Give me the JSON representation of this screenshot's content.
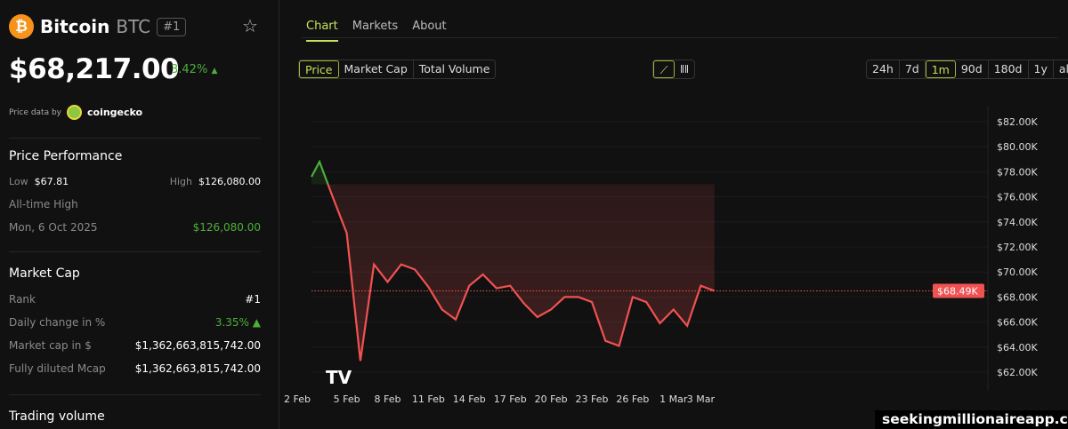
{
  "coin": {
    "icon": "bitcoin-icon",
    "name": "Bitcoin",
    "symbol": "BTC",
    "rank_badge": "#1",
    "price": "$68,217.00",
    "change": "3.42%",
    "change_arrow": "▲",
    "price_data_by": "Price data by",
    "provider": "coingecko"
  },
  "performance": {
    "title": "Price Performance",
    "low_label": "Low",
    "low": "$67.81",
    "high_label": "High",
    "high": "$126,080.00",
    "ath_label": "All-time High",
    "ath_date": "Mon, 6 Oct 2025",
    "ath_value": "$126,080.00"
  },
  "market_cap": {
    "title": "Market Cap",
    "rows": [
      {
        "label": "Rank",
        "value": "#1"
      },
      {
        "label": "Daily change in %",
        "value": "3.35% ▲"
      },
      {
        "label": "Market cap in $",
        "value": "$1,362,663,815,742.00"
      },
      {
        "label": "Fully diluted Mcap",
        "value": "$1,362,663,815,742.00"
      }
    ]
  },
  "trading_volume": {
    "title": "Trading volume"
  },
  "tabs": [
    {
      "label": "Chart"
    },
    {
      "label": "Markets"
    },
    {
      "label": "About"
    }
  ],
  "metric_buttons": [
    {
      "label": "Price"
    },
    {
      "label": "Market Cap"
    },
    {
      "label": "Total Volume"
    }
  ],
  "range_buttons": [
    {
      "label": "24h"
    },
    {
      "label": "7d"
    },
    {
      "label": "1m"
    },
    {
      "label": "90d"
    },
    {
      "label": "180d"
    },
    {
      "label": "1y"
    },
    {
      "label": "all"
    }
  ],
  "selected": {
    "tab": "Chart",
    "metric": "Price",
    "range": "1m",
    "chart_style": "line"
  },
  "watermark": "seekingmillionaireapp.com",
  "colors": {
    "up": "#4caf3a",
    "down": "#f05252",
    "accent": "#c5e05a"
  },
  "chart_data": {
    "type": "line",
    "x": [
      "2 Feb",
      "3 Feb",
      "4 Feb",
      "5 Feb",
      "6 Feb",
      "7 Feb",
      "8 Feb",
      "9 Feb",
      "10 Feb",
      "11 Feb",
      "12 Feb",
      "13 Feb",
      "14 Feb",
      "15 Feb",
      "16 Feb",
      "17 Feb",
      "18 Feb",
      "19 Feb",
      "20 Feb",
      "21 Feb",
      "22 Feb",
      "23 Feb",
      "24 Feb",
      "25 Feb",
      "26 Feb",
      "27 Feb",
      "28 Feb",
      "1 Mar",
      "2 Mar",
      "3 Mar",
      "4 Mar"
    ],
    "values": [
      77.6,
      78.8,
      75.9,
      73.1,
      62.9,
      70.6,
      69.2,
      70.6,
      70.2,
      68.8,
      67.0,
      66.2,
      68.9,
      69.8,
      68.7,
      68.9,
      67.5,
      66.4,
      67.0,
      68.0,
      68.0,
      67.6,
      64.5,
      64.1,
      68.0,
      67.6,
      65.9,
      67.0,
      65.7,
      68.9,
      68.49
    ],
    "unit": "$K",
    "baseline": 77.0,
    "current_label": "$68.49K",
    "ylim": [
      60.5,
      83
    ],
    "yticks": [
      "$62.00K",
      "$64.00K",
      "$66.00K",
      "$68.00K",
      "$70.00K",
      "$72.00K",
      "$74.00K",
      "$76.00K",
      "$78.00K",
      "$80.00K",
      "$82.00K"
    ],
    "ytick_values": [
      62,
      64,
      66,
      68,
      70,
      72,
      74,
      76,
      78,
      80,
      82
    ],
    "xticks": [
      "2 Feb",
      "5 Feb",
      "8 Feb",
      "11 Feb",
      "14 Feb",
      "17 Feb",
      "20 Feb",
      "23 Feb",
      "26 Feb",
      "1 Mar",
      "3 Mar"
    ],
    "grid": true
  }
}
